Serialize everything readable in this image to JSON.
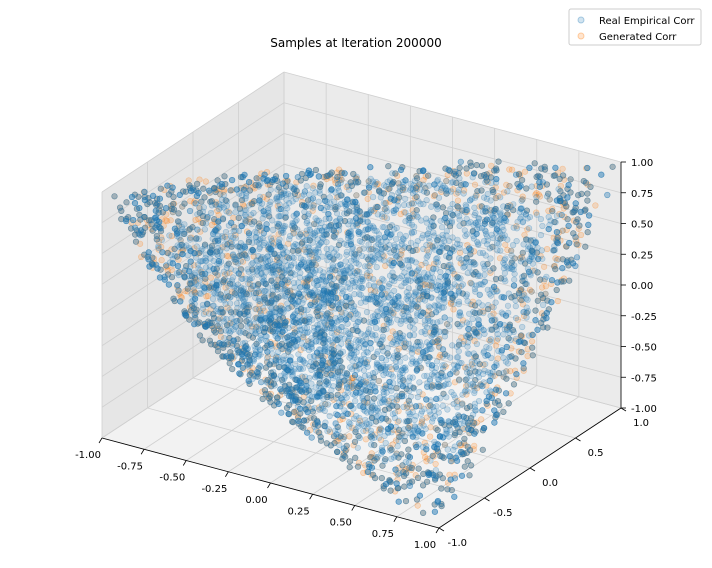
{
  "chart_data": {
    "type": "scatter",
    "projection": "3d",
    "title": "Samples at Iteration 200000",
    "xlabel": "",
    "ylabel": "",
    "zlabel": "",
    "xlim": [
      -1.0,
      1.0
    ],
    "ylim": [
      -1.0,
      1.0
    ],
    "zlim": [
      -1.0,
      1.0
    ],
    "x_ticks": [
      "-1.00",
      "-0.75",
      "-0.50",
      "-0.25",
      "0.00",
      "0.25",
      "0.50",
      "0.75",
      "1.00"
    ],
    "y_ticks": [
      "-1.0",
      "-0.5",
      "0.0",
      "0.5",
      "1.0"
    ],
    "z_ticks": [
      "-1.00",
      "-0.75",
      "-0.50",
      "-0.25",
      "0.00",
      "0.25",
      "0.50",
      "0.75",
      "1.00"
    ],
    "grid": true,
    "legend_position": "top-right",
    "series": [
      {
        "name": "Real Empirical Corr",
        "color": "#1f77b4",
        "marker": "circle",
        "alpha": 0.2,
        "distribution": "elliptope",
        "sample_x": [
          0.95,
          -0.6,
          0.1,
          0.4,
          -0.2,
          0.7,
          0.2,
          -0.4,
          0.6,
          0.0
        ],
        "sample_y": [
          0.95,
          -0.5,
          -0.7,
          0.3,
          0.1,
          0.8,
          -0.2,
          0.5,
          -0.4,
          0.6
        ],
        "sample_z": [
          0.95,
          0.3,
          -0.3,
          0.2,
          -0.6,
          0.5,
          0.0,
          -0.1,
          -0.2,
          0.1
        ]
      },
      {
        "name": "Generated Corr",
        "color": "#ff7f0e",
        "marker": "circle",
        "alpha": 0.2,
        "distribution": "elliptope",
        "sample_x": [
          -0.9,
          0.3,
          0.2,
          -0.5,
          0.6,
          0.0,
          -0.3,
          0.4
        ],
        "sample_y": [
          -0.4,
          -0.8,
          -0.6,
          0.3,
          -0.3,
          -0.5,
          -0.7,
          0.0
        ],
        "sample_z": [
          0.4,
          -0.5,
          -0.8,
          0.1,
          -0.1,
          -0.4,
          0.0,
          -0.6
        ]
      }
    ]
  }
}
